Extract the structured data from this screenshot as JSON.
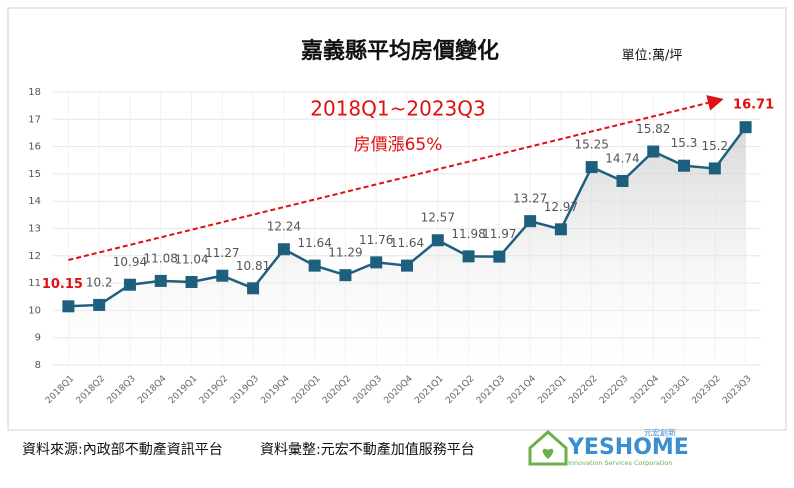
{
  "chart_data": {
    "type": "line",
    "title": "嘉義縣平均房價變化",
    "unit": "單位:萬/坪",
    "annotations": [
      "2018Q1~2023Q3",
      "房價漲65%"
    ],
    "categories": [
      "2018Q1",
      "2018Q2",
      "2018Q3",
      "2018Q4",
      "2019Q1",
      "2019Q2",
      "2019Q3",
      "2019Q4",
      "2020Q1",
      "2020Q2",
      "2020Q3",
      "2020Q4",
      "2021Q1",
      "2021Q2",
      "2021Q3",
      "2021Q4",
      "2022Q1",
      "2022Q2",
      "2022Q3",
      "2022Q4",
      "2023Q1",
      "2023Q2",
      "2023Q3"
    ],
    "values": [
      10.15,
      10.2,
      10.94,
      11.08,
      11.04,
      11.27,
      10.81,
      12.24,
      11.64,
      11.29,
      11.76,
      11.64,
      12.57,
      11.98,
      11.97,
      13.27,
      12.97,
      15.25,
      14.74,
      15.82,
      15.3,
      15.2,
      16.71
    ],
    "color": "#1d5f7c",
    "highlight_color": "#e01010",
    "ylim": [
      8,
      18
    ],
    "yticks": [
      8,
      9,
      10,
      11,
      12,
      13,
      14,
      15,
      16,
      17,
      18
    ],
    "grid": true
  },
  "footer": {
    "source": "資料來源:內政部不動產資訊平台",
    "compiled": "資料彙整:元宏不動產加值服務平台"
  },
  "logo": {
    "name": "YESHOME",
    "tag": "元宏創新",
    "sub": "Innovation Services Corporation"
  }
}
